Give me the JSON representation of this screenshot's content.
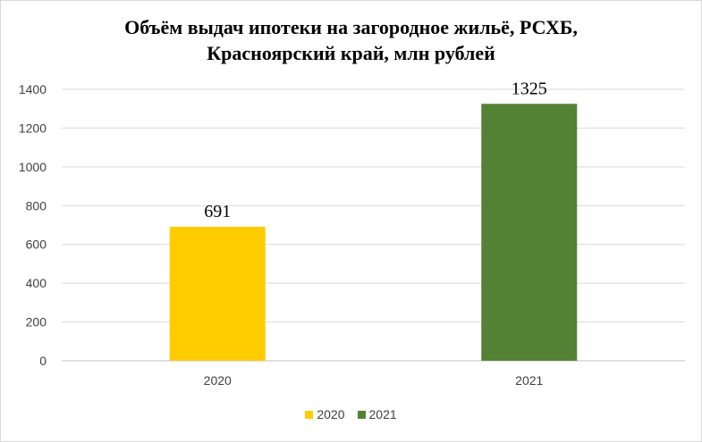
{
  "chart_data": {
    "type": "bar",
    "title_lines": [
      "Объём выдач ипотеки на загородное жильё, РСХБ,",
      "Красноярский край, млн рублей"
    ],
    "categories": [
      "2020",
      "2021"
    ],
    "values": [
      691,
      1325
    ],
    "data_labels": [
      "691",
      "1325"
    ],
    "colors": [
      "#ffcc00",
      "#548235"
    ],
    "legend": [
      "2020",
      "2021"
    ],
    "legend_position": "bottom",
    "ylim": [
      0,
      1400
    ],
    "yticks": [
      "0",
      "200",
      "400",
      "600",
      "800",
      "1000",
      "1200",
      "1400"
    ],
    "grid": true
  }
}
